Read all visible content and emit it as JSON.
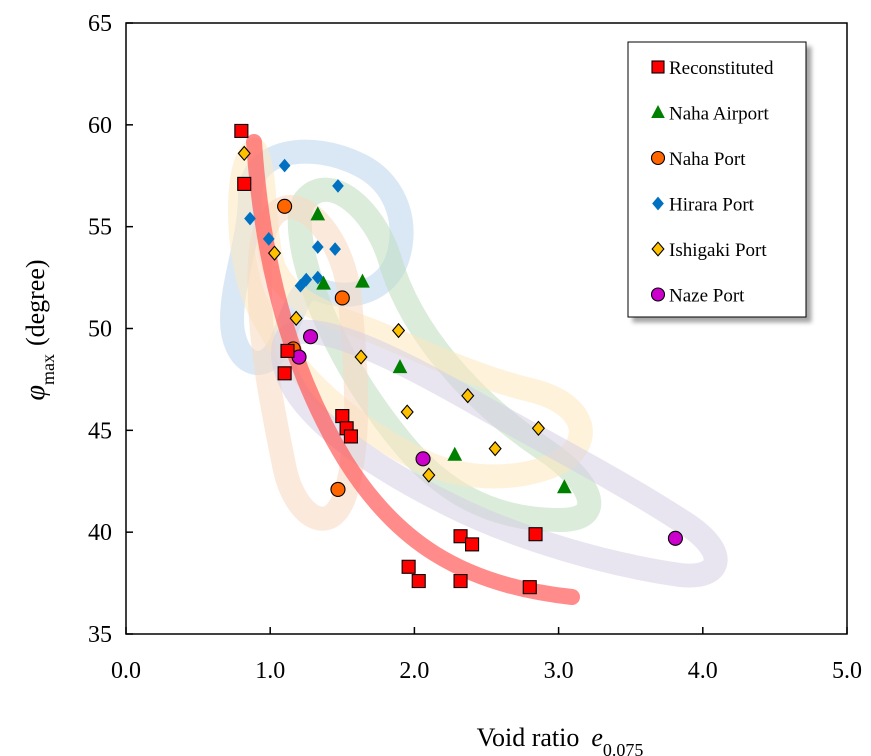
{
  "chart_data": {
    "type": "scatter",
    "title": "",
    "xlabel": {
      "main": "Void ratio",
      "symbol": "e",
      "subscript": "0.075"
    },
    "ylabel": {
      "symbol": "φ",
      "subscript": "max",
      "unit": "(degree)"
    },
    "xlim": [
      0,
      5
    ],
    "ylim": [
      35,
      65
    ],
    "xticks": [
      0,
      1,
      2,
      3,
      4,
      5
    ],
    "xtick_labels": [
      "0.0",
      "1.0",
      "2.0",
      "3.0",
      "4.0",
      "5.0"
    ],
    "yticks": [
      35,
      40,
      45,
      50,
      55,
      60,
      65
    ],
    "ytick_labels": [
      "35",
      "40",
      "45",
      "50",
      "55",
      "60",
      "65"
    ],
    "grid": false,
    "legend_position": "top-right",
    "series": [
      {
        "name": "Reconstituted",
        "marker": "square",
        "color": "#ff0000",
        "points": [
          [
            0.8,
            59.7
          ],
          [
            0.82,
            57.1
          ],
          [
            1.12,
            48.9
          ],
          [
            1.1,
            47.8
          ],
          [
            1.5,
            45.7
          ],
          [
            1.53,
            45.1
          ],
          [
            1.56,
            44.7
          ],
          [
            2.32,
            39.8
          ],
          [
            2.4,
            39.4
          ],
          [
            2.84,
            39.9
          ],
          [
            1.96,
            38.3
          ],
          [
            2.03,
            37.6
          ],
          [
            2.32,
            37.6
          ],
          [
            2.8,
            37.3
          ]
        ]
      },
      {
        "name": "Naha Airport",
        "marker": "triangle",
        "color": "#008000",
        "points": [
          [
            1.33,
            55.6
          ],
          [
            1.37,
            52.2
          ],
          [
            1.64,
            52.3
          ],
          [
            1.9,
            48.1
          ],
          [
            2.28,
            43.8
          ],
          [
            3.04,
            42.2
          ]
        ]
      },
      {
        "name": "Naha Port",
        "marker": "circle",
        "color": "#ff6600",
        "points": [
          [
            1.1,
            56.0
          ],
          [
            1.16,
            49.0
          ],
          [
            1.5,
            51.5
          ],
          [
            1.47,
            42.1
          ]
        ]
      },
      {
        "name": "Hirara Port",
        "marker": "diamond",
        "color": "#0070c0",
        "points": [
          [
            1.1,
            58.0
          ],
          [
            1.47,
            57.0
          ],
          [
            0.86,
            55.4
          ],
          [
            0.99,
            54.4
          ],
          [
            1.33,
            54.0
          ],
          [
            1.45,
            53.9
          ],
          [
            1.33,
            52.5
          ],
          [
            1.25,
            52.4
          ],
          [
            1.21,
            52.1
          ]
        ]
      },
      {
        "name": "Ishigaki Port",
        "marker": "diamond",
        "color": "#ffc000",
        "points": [
          [
            0.82,
            58.6
          ],
          [
            1.03,
            53.7
          ],
          [
            1.18,
            50.5
          ],
          [
            1.89,
            49.9
          ],
          [
            1.63,
            48.6
          ],
          [
            2.37,
            46.7
          ],
          [
            1.95,
            45.9
          ],
          [
            2.86,
            45.1
          ],
          [
            2.56,
            44.1
          ],
          [
            2.1,
            42.8
          ]
        ]
      },
      {
        "name": "Naze Port",
        "marker": "circle",
        "color": "#cc00cc",
        "points": [
          [
            1.28,
            49.6
          ],
          [
            1.2,
            48.6
          ],
          [
            2.06,
            43.6
          ],
          [
            3.81,
            39.7
          ]
        ]
      }
    ]
  }
}
